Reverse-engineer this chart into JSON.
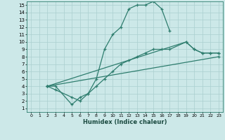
{
  "xlabel": "Humidex (Indice chaleur)",
  "xlim": [
    -0.5,
    23.5
  ],
  "ylim": [
    0.5,
    15.5
  ],
  "xticks": [
    0,
    1,
    2,
    3,
    4,
    5,
    6,
    7,
    8,
    9,
    10,
    11,
    12,
    13,
    14,
    15,
    16,
    17,
    18,
    19,
    20,
    21,
    22,
    23
  ],
  "yticks": [
    1,
    2,
    3,
    4,
    5,
    6,
    7,
    8,
    9,
    10,
    11,
    12,
    13,
    14,
    15
  ],
  "bg_color": "#cce8e8",
  "line_color": "#2e7d6e",
  "grid_color": "#aacfcf",
  "lines": [
    {
      "x": [
        2,
        3,
        5,
        6,
        7,
        8,
        9,
        10,
        11,
        12,
        13,
        14,
        15,
        16,
        17
      ],
      "y": [
        4,
        4,
        1.5,
        2.5,
        3,
        5,
        9,
        11,
        12,
        14.5,
        15,
        15,
        15.5,
        14.5,
        11.5
      ]
    },
    {
      "x": [
        2,
        3,
        5,
        6,
        7,
        8,
        9,
        10,
        11,
        12,
        13,
        14,
        15,
        16,
        17,
        19,
        20,
        21,
        22,
        23
      ],
      "y": [
        4,
        3.5,
        2.5,
        2,
        3,
        4,
        5,
        6,
        7,
        7.5,
        8,
        8.5,
        9,
        9,
        9,
        10,
        9,
        8.5,
        8.5,
        8.5
      ]
    },
    {
      "x": [
        2,
        23
      ],
      "y": [
        4,
        8
      ]
    },
    {
      "x": [
        2,
        19,
        20,
        21,
        22,
        23
      ],
      "y": [
        4,
        10,
        9,
        8.5,
        8.5,
        8.5
      ]
    }
  ]
}
